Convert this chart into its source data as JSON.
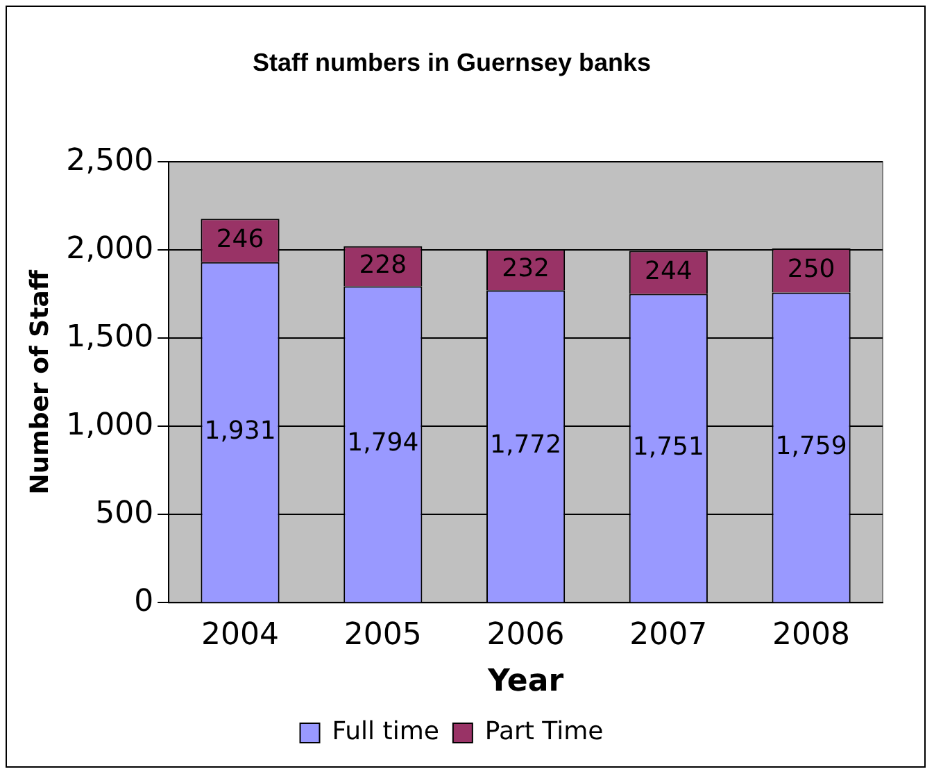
{
  "chart_data": {
    "type": "bar",
    "title": "Staff numbers in Guernsey banks",
    "xlabel": "Year",
    "ylabel": "Number of Staff",
    "categories": [
      "2004",
      "2005",
      "2006",
      "2007",
      "2008"
    ],
    "series": [
      {
        "name": "Full time",
        "color": "#9999ff",
        "values": [
          1931,
          1794,
          1772,
          1751,
          1759
        ],
        "value_labels": [
          "1,931",
          "1,794",
          "1,772",
          "1,751",
          "1,759"
        ]
      },
      {
        "name": "Part Time",
        "color": "#993366",
        "values": [
          246,
          228,
          232,
          244,
          250
        ],
        "value_labels": [
          "246",
          "228",
          "232",
          "244",
          "250"
        ]
      }
    ],
    "stacked": true,
    "ylim": [
      0,
      2500
    ],
    "yticks": [
      0,
      500,
      {
        "value": 1000,
        "label": "1,000"
      },
      {
        "value": 1500,
        "label": "1,500"
      },
      {
        "value": 2000,
        "label": "2,000"
      },
      {
        "value": 2500,
        "label": "2,500"
      }
    ],
    "grid": "y",
    "legend": "bottom"
  }
}
